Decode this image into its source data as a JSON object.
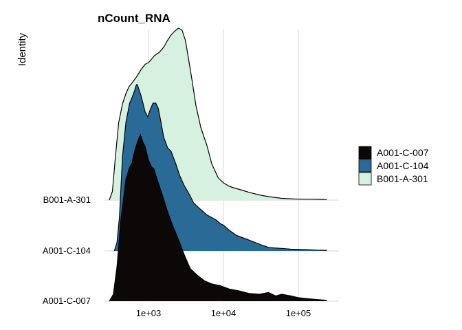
{
  "chart_data": {
    "type": "ridgeline",
    "title": "nCount_RNA",
    "xlabel": "",
    "ylabel": "Identity",
    "x_scale": "log10",
    "xlim": [
      200,
      350000
    ],
    "x_ticks": [
      {
        "value": 1000,
        "label": "1e+03"
      },
      {
        "value": 10000,
        "label": "1e+04"
      },
      {
        "value": 100000,
        "label": "1e+05"
      }
    ],
    "categories": [
      "A001-C-007",
      "A001-C-104",
      "B001-A-301"
    ],
    "legend_position": "right",
    "grid": true,
    "series": [
      {
        "name": "A001-C-007",
        "color": "#0c0808",
        "density": [
          [
            300,
            0
          ],
          [
            340,
            0.04
          ],
          [
            380,
            0.2
          ],
          [
            430,
            0.48
          ],
          [
            500,
            0.71
          ],
          [
            560,
            0.78
          ],
          [
            600,
            0.8
          ],
          [
            660,
            0.88
          ],
          [
            720,
            0.93
          ],
          [
            780,
            0.97
          ],
          [
            850,
            0.92
          ],
          [
            900,
            0.9
          ],
          [
            960,
            0.85
          ],
          [
            1000,
            0.82
          ],
          [
            1100,
            0.78
          ],
          [
            1180,
            0.77
          ],
          [
            1300,
            0.71
          ],
          [
            1550,
            0.61
          ],
          [
            1800,
            0.52
          ],
          [
            2100,
            0.44
          ],
          [
            2500,
            0.36
          ],
          [
            3000,
            0.27
          ],
          [
            3600,
            0.19
          ],
          [
            4500,
            0.15
          ],
          [
            5500,
            0.12
          ],
          [
            7000,
            0.1
          ],
          [
            9000,
            0.09
          ],
          [
            12000,
            0.07
          ],
          [
            16000,
            0.06
          ],
          [
            22000,
            0.045
          ],
          [
            30000,
            0.04
          ],
          [
            40000,
            0.05
          ],
          [
            50000,
            0.03
          ],
          [
            60000,
            0.04
          ],
          [
            80000,
            0.03
          ],
          [
            100000,
            0.02
          ],
          [
            130000,
            0.015
          ],
          [
            170000,
            0.01
          ],
          [
            240000,
            0.005
          ]
        ]
      },
      {
        "name": "A001-C-104",
        "color": "#2a6a96",
        "density": [
          [
            350,
            0
          ],
          [
            380,
            0.05
          ],
          [
            410,
            0.2
          ],
          [
            450,
            0.55
          ],
          [
            500,
            0.75
          ],
          [
            560,
            0.86
          ],
          [
            600,
            0.89
          ],
          [
            650,
            0.93
          ],
          [
            680,
            0.96
          ],
          [
            700,
            0.97
          ],
          [
            720,
            0.96
          ],
          [
            800,
            0.9
          ],
          [
            900,
            0.81
          ],
          [
            980,
            0.78
          ],
          [
            1050,
            0.82
          ],
          [
            1150,
            0.86
          ],
          [
            1250,
            0.86
          ],
          [
            1350,
            0.83
          ],
          [
            1450,
            0.76
          ],
          [
            1600,
            0.66
          ],
          [
            1800,
            0.6
          ],
          [
            2000,
            0.58
          ],
          [
            2300,
            0.51
          ],
          [
            2600,
            0.44
          ],
          [
            3000,
            0.38
          ],
          [
            3500,
            0.33
          ],
          [
            4000,
            0.28
          ],
          [
            5000,
            0.24
          ],
          [
            6000,
            0.21
          ],
          [
            8000,
            0.18
          ],
          [
            9000,
            0.16
          ],
          [
            10000,
            0.15
          ],
          [
            12000,
            0.12
          ],
          [
            15000,
            0.09
          ],
          [
            20000,
            0.07
          ],
          [
            30000,
            0.04
          ],
          [
            40000,
            0.02
          ],
          [
            60000,
            0.015
          ],
          [
            80000,
            0.01
          ],
          [
            120000,
            0.008
          ],
          [
            180000,
            0.005
          ],
          [
            240000,
            0.004
          ]
        ]
      },
      {
        "name": "B001-A-301",
        "color": "#d6f1e0",
        "density": [
          [
            300,
            0
          ],
          [
            330,
            0.05
          ],
          [
            360,
            0.24
          ],
          [
            400,
            0.45
          ],
          [
            450,
            0.56
          ],
          [
            500,
            0.62
          ],
          [
            550,
            0.66
          ],
          [
            600,
            0.68
          ],
          [
            700,
            0.72
          ],
          [
            800,
            0.76
          ],
          [
            900,
            0.79
          ],
          [
            1000,
            0.8
          ],
          [
            1100,
            0.82
          ],
          [
            1200,
            0.84
          ],
          [
            1400,
            0.86
          ],
          [
            1600,
            0.89
          ],
          [
            1800,
            0.93
          ],
          [
            2000,
            0.96
          ],
          [
            2200,
            0.98
          ],
          [
            2500,
            1.0
          ],
          [
            2800,
            0.99
          ],
          [
            3100,
            0.93
          ],
          [
            3400,
            0.83
          ],
          [
            3800,
            0.7
          ],
          [
            4300,
            0.55
          ],
          [
            5000,
            0.42
          ],
          [
            6000,
            0.32
          ],
          [
            7000,
            0.21
          ],
          [
            8500,
            0.13
          ],
          [
            10000,
            0.1
          ],
          [
            12000,
            0.08
          ],
          [
            14000,
            0.07
          ],
          [
            17000,
            0.06
          ],
          [
            22000,
            0.045
          ],
          [
            30000,
            0.03
          ],
          [
            40000,
            0.02
          ],
          [
            60000,
            0.01
          ],
          [
            90000,
            0.006
          ],
          [
            140000,
            0.005
          ],
          [
            200000,
            0.004
          ],
          [
            240000,
            0.003
          ]
        ]
      }
    ]
  }
}
